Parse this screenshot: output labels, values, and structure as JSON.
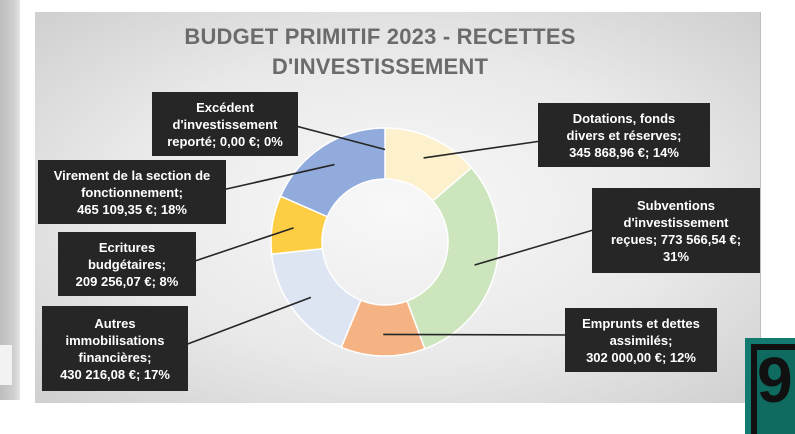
{
  "chart_data": {
    "type": "pie",
    "subtype": "doughnut",
    "title_lines": [
      "BUDGET PRIMITIF 2023 - RECETTES",
      "D'INVESTISSEMENT"
    ],
    "slices": [
      {
        "label_lines": [
          "Dotations, fonds",
          "divers et réserves;",
          "345 868,96 €; 14%"
        ],
        "value": 345868.96,
        "percent": 14,
        "color": "#fdf0cc"
      },
      {
        "label_lines": [
          "Subventions",
          "d'investissement",
          "reçues; 773 566,54 €;",
          "31%"
        ],
        "value": 773566.54,
        "percent": 31,
        "color": "#cde5bd"
      },
      {
        "label_lines": [
          "Emprunts et dettes",
          "assimilés;",
          "302 000,00 €; 12%"
        ],
        "value": 302000.0,
        "percent": 12,
        "color": "#f5b383"
      },
      {
        "label_lines": [
          "Autres",
          "immobilisations",
          "financières;",
          "430 216,08 €; 17%"
        ],
        "value": 430216.08,
        "percent": 17,
        "color": "#dde5f3"
      },
      {
        "label_lines": [
          "Ecritures",
          "budgétaires;",
          "209 256,07 €; 8%"
        ],
        "value": 209256.07,
        "percent": 8,
        "color": "#fdcd44"
      },
      {
        "label_lines": [
          "Virement de la section de",
          "fonctionnement;",
          "465 109,35 €; 18%"
        ],
        "value": 465109.35,
        "percent": 18,
        "color": "#91acdc"
      },
      {
        "label_lines": [
          "Excédent",
          "d'investissement",
          "reporté; 0,00 €; 0%"
        ],
        "value": 0,
        "percent": 0,
        "color": "#5b9bd5"
      }
    ],
    "legend": "none",
    "data_labels": "callouts"
  },
  "decor": {
    "corner_glyph": "9"
  }
}
